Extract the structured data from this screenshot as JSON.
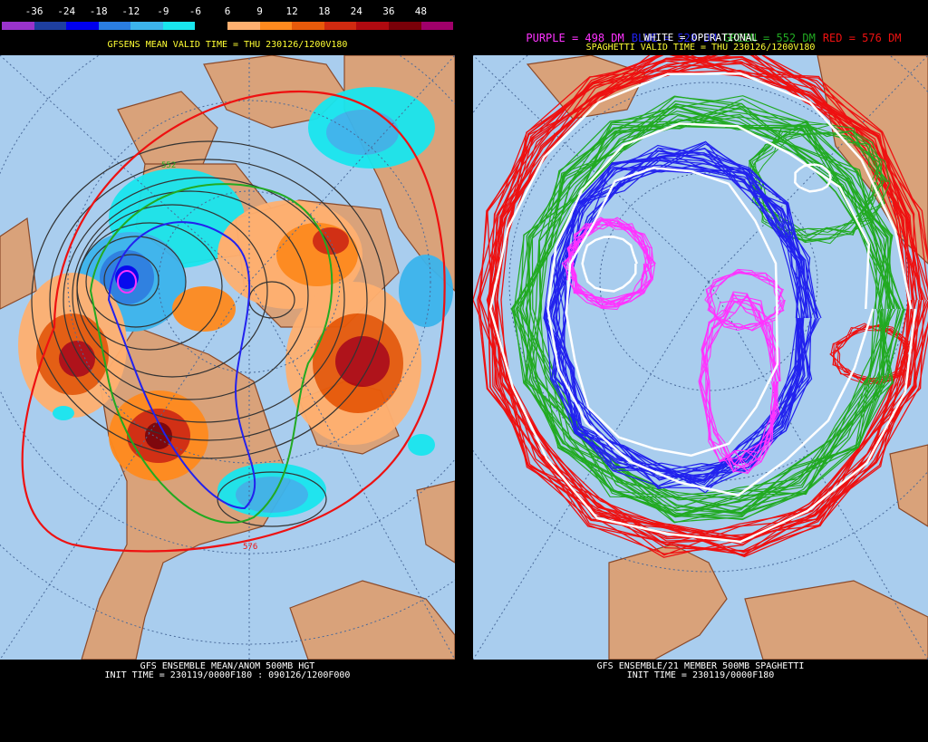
{
  "left": {
    "colorbar_labels": [
      "-36",
      "-24",
      "-18",
      "-12",
      "-9",
      "-6",
      "6",
      "9",
      "12",
      "18",
      "24",
      "36",
      "48"
    ],
    "colorbar_colors": [
      "#9933cc",
      "#1e3fa0",
      "#0000ee",
      "#2a7de0",
      "#3cb4ec",
      "#19e6ee",
      "#000000",
      "#ffb070",
      "#ff8a1e",
      "#e85a0a",
      "#d12a10",
      "#b00a10",
      "#7a0008",
      "#a0006a"
    ],
    "header": "GFSENS MEAN VALID TIME = THU 230126/1200V180",
    "footer_line1": "GFS ENSEMBLE MEAN/ANOM 500MB HGT",
    "footer_line2": "INIT TIME = 230119/0000F180 : 090126/1200F000",
    "contour_label_1": "552",
    "contour_label_2": "576"
  },
  "right": {
    "legend": [
      {
        "text": "PURPLE = 498 DM",
        "color": "#ff33ff"
      },
      {
        "text": "BLUE = 528 DM",
        "color": "#2222ee"
      },
      {
        "text": "GREEN = 552 DM",
        "color": "#22aa22"
      },
      {
        "text": "RED = 576 DM",
        "color": "#ee1111"
      }
    ],
    "operational": "WHITE = OPERATIONAL",
    "header": "SPAGHETTI VALID TIME = THU 230126/1200V180",
    "footer_line1": "GFS ENSEMBLE/21 MEMBER 500MB SPAGHETTI",
    "footer_line2": "INIT TIME = 230119/0000F180"
  },
  "colors": {
    "ocean": "#a9cdee",
    "land": "#d9a27a",
    "coast": "#8b4a2a",
    "header_text": "#ffff33"
  }
}
